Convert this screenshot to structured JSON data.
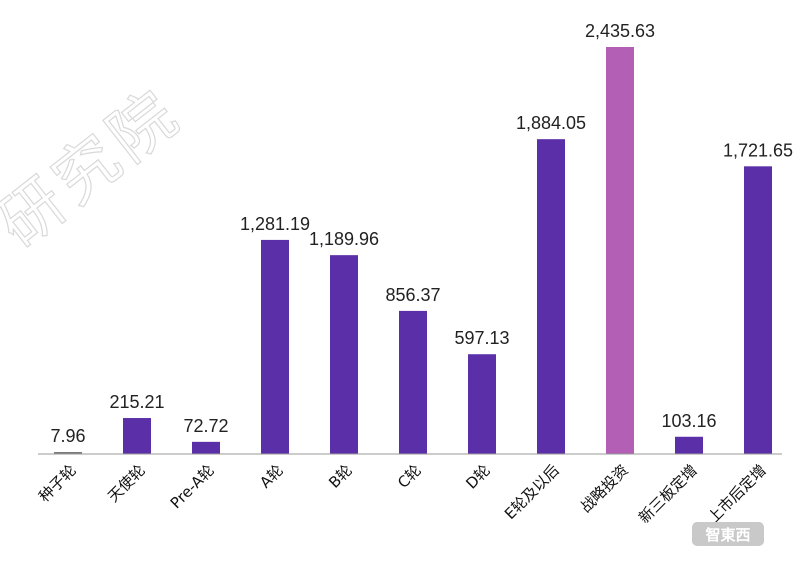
{
  "watermark": {
    "text": "研究院"
  },
  "logo": {
    "text": "智東西"
  },
  "colors": {
    "primary": "#5b2fa8",
    "highlight": "#b35fb6",
    "axis": "#9a9a9a"
  },
  "chart_data": {
    "type": "bar",
    "categories": [
      "种子轮",
      "天使轮",
      "Pre-A轮",
      "A轮",
      "B轮",
      "C轮",
      "D轮",
      "E轮及以后",
      "战略投资",
      "新三板定增",
      "上市后定增"
    ],
    "values": [
      7.96,
      215.21,
      72.72,
      1281.19,
      1189.96,
      856.37,
      597.13,
      1884.05,
      2435.63,
      103.16,
      1721.65
    ],
    "value_labels": [
      "7.96",
      "215.21",
      "72.72",
      "1,281.19",
      "1,189.96",
      "856.37",
      "597.13",
      "1,884.05",
      "2,435.63",
      "103.16",
      "1,721.65"
    ],
    "highlight_category": "战略投资",
    "ylim": [
      0,
      2435.63
    ],
    "grid": false,
    "legend": "none"
  }
}
